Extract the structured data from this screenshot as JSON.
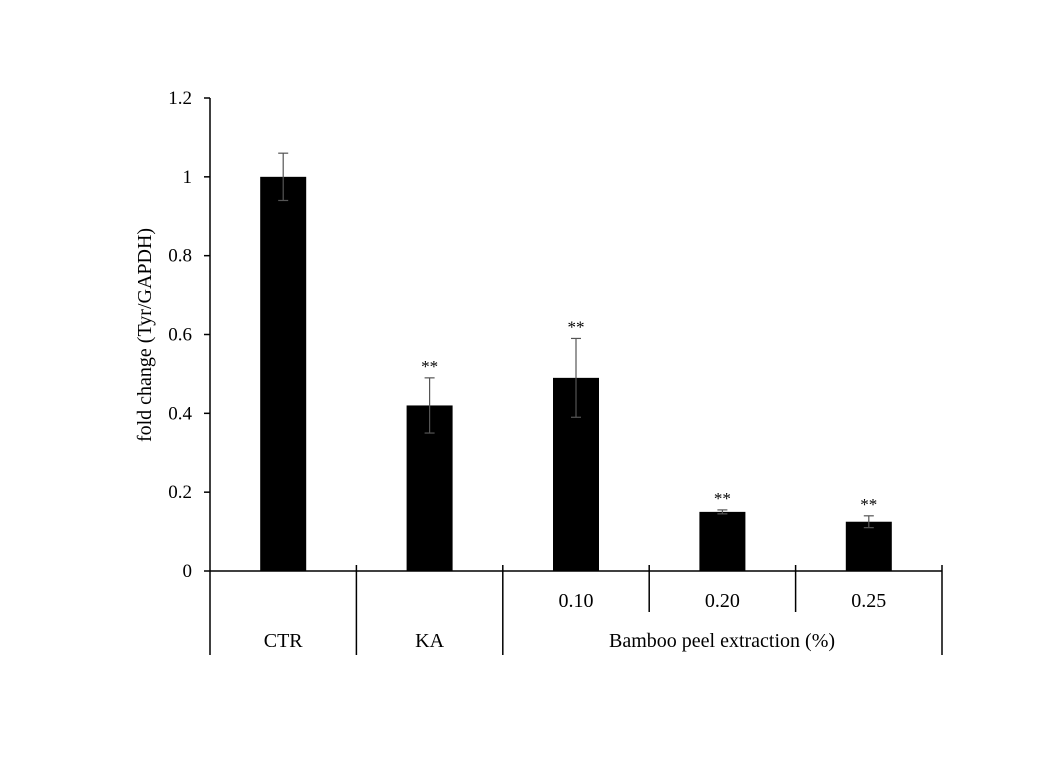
{
  "chart_data": {
    "type": "bar",
    "ylabel": "fold change (Tyr/GAPDH)",
    "ylim": [
      0,
      1.2
    ],
    "yticks": [
      "0",
      "0.2",
      "0.4",
      "0.6",
      "0.8",
      "1",
      "1.2"
    ],
    "grid": false,
    "legend": "none",
    "bar_color": "#000000",
    "bars": [
      {
        "label": "CTR",
        "value": 1.0,
        "error": 0.06,
        "significance": ""
      },
      {
        "label": "KA",
        "value": 0.42,
        "error": 0.07,
        "significance": "**"
      },
      {
        "label": "0.10",
        "value": 0.49,
        "error": 0.1,
        "significance": "**"
      },
      {
        "label": "0.20",
        "value": 0.15,
        "error": 0.005,
        "significance": "**"
      },
      {
        "label": "0.25",
        "value": 0.125,
        "error": 0.015,
        "significance": "**"
      }
    ],
    "group_label": "Bamboo peel extraction (%)"
  }
}
